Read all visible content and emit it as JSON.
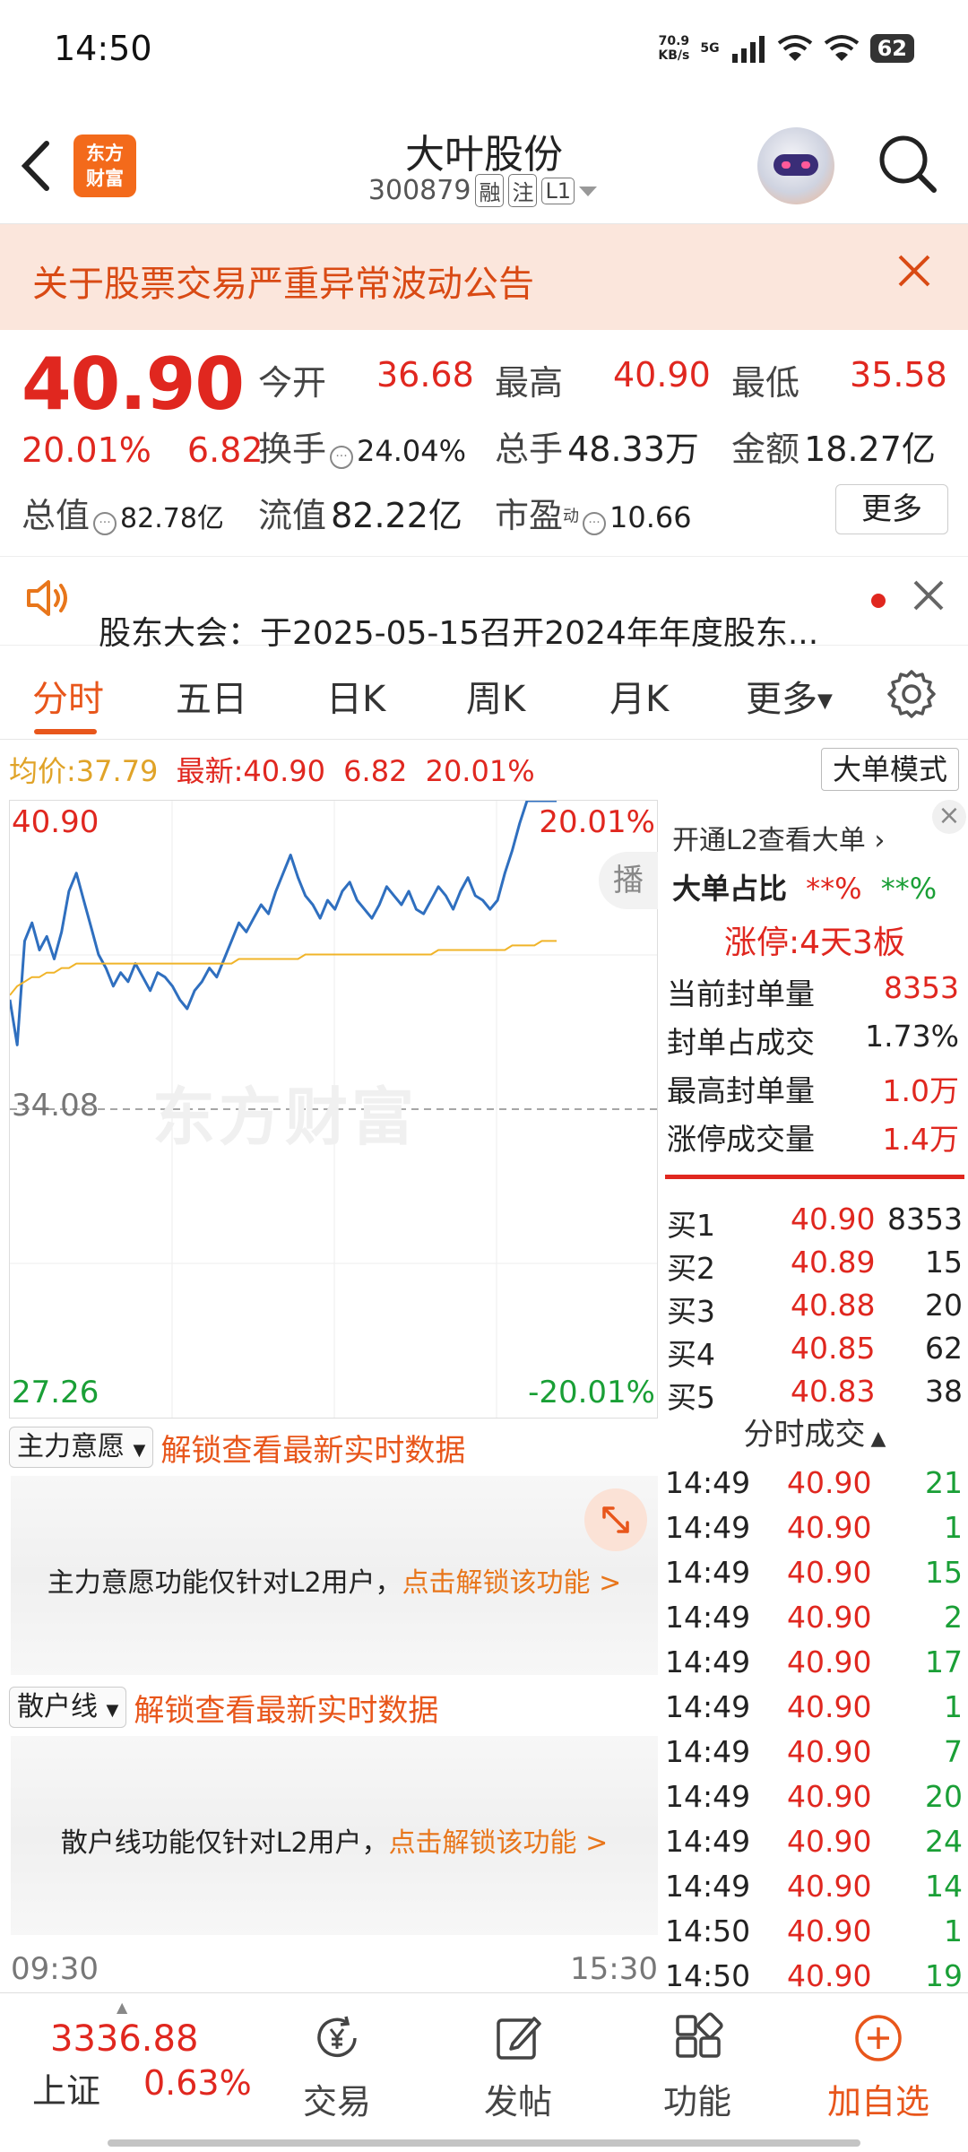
{
  "status_bar": {
    "time": "14:50",
    "net_speed_value": "70.9",
    "net_speed_unit": "KB/s",
    "network": "5G",
    "battery": "62"
  },
  "header": {
    "logo_line1": "东方",
    "logo_line2": "财富",
    "stock_name": "大叶股份",
    "stock_code": "300879",
    "tags": [
      "融",
      "注",
      "L1"
    ]
  },
  "notice": {
    "text": "关于股票交易严重异常波动公告"
  },
  "quote": {
    "price": "40.90",
    "change_pct": "20.01%",
    "change_amt": "6.82",
    "open_label": "今开",
    "open": "36.68",
    "high_label": "最高",
    "high": "40.90",
    "low_label": "最低",
    "low": "35.58",
    "turnover_label": "换手",
    "turnover": "24.04%",
    "volume_label": "总手",
    "volume": "48.33万",
    "amount_label": "金额",
    "amount": "18.27亿",
    "mktcap_label": "总值",
    "mktcap": "82.78亿",
    "float_label": "流值",
    "float_cap": "82.22亿",
    "pe_label": "市盈",
    "pe_sup": "动",
    "pe": "10.66",
    "more_label": "更多"
  },
  "announcement": {
    "text": "股东大会：于2025-05-15召开2024年年度股东..."
  },
  "tabs": {
    "intraday": "分时",
    "five_day": "五日",
    "daily": "日K",
    "weekly": "周K",
    "monthly": "月K",
    "more": "更多"
  },
  "chart_info": {
    "avg_label": "均价:",
    "avg_value": "37.79",
    "latest_label": "最新:",
    "latest_price": "40.90",
    "latest_change": "6.82",
    "latest_pct": "20.01%",
    "big_order_mode": "大单模式"
  },
  "chart_data": {
    "type": "line",
    "y_top_label": "40.90",
    "y_mid_label": "34.08",
    "y_bottom_label": "27.26",
    "pct_top_label": "20.01%",
    "pct_bottom_label": "-20.01%",
    "ylim": [
      27.26,
      40.9
    ],
    "prev_close": 34.08,
    "x_start_label": "09:30",
    "x_end_label": "15:30",
    "watermark": "东方财富",
    "broadcast_label": "播",
    "series": [
      {
        "color": "#2f6fbf",
        "values": [
          36.5,
          35.5,
          37.8,
          38.2,
          37.6,
          37.9,
          37.4,
          38.0,
          38.9,
          39.3,
          38.7,
          38.1,
          37.5,
          37.2,
          36.8,
          37.1,
          36.9,
          37.3,
          37.0,
          36.7,
          37.1,
          37.0,
          36.8,
          36.5,
          36.3,
          36.7,
          36.9,
          37.2,
          37.0,
          37.4,
          37.8,
          38.2,
          38.0,
          38.3,
          38.6,
          38.4,
          38.9,
          39.3,
          39.7,
          39.2,
          38.8,
          38.6,
          38.3,
          38.7,
          38.5,
          38.9,
          39.1,
          38.7,
          38.5,
          38.3,
          38.6,
          39.0,
          38.8,
          38.6,
          38.9,
          38.5,
          38.4,
          38.7,
          39.0,
          38.8,
          38.5,
          38.9,
          39.2,
          38.8,
          38.7,
          38.5,
          38.7,
          39.3,
          39.8,
          40.4,
          40.9,
          40.9,
          40.9,
          40.9,
          40.9
        ]
      },
      {
        "color": "#f0b429",
        "values": [
          36.6,
          36.8,
          36.9,
          37.0,
          37.0,
          37.1,
          37.1,
          37.2,
          37.2,
          37.3,
          37.3,
          37.3,
          37.3,
          37.3,
          37.3,
          37.3,
          37.3,
          37.3,
          37.3,
          37.3,
          37.3,
          37.3,
          37.3,
          37.3,
          37.3,
          37.3,
          37.3,
          37.3,
          37.3,
          37.3,
          37.3,
          37.4,
          37.4,
          37.4,
          37.4,
          37.4,
          37.4,
          37.4,
          37.4,
          37.4,
          37.5,
          37.5,
          37.5,
          37.5,
          37.5,
          37.5,
          37.5,
          37.5,
          37.5,
          37.5,
          37.5,
          37.5,
          37.5,
          37.5,
          37.5,
          37.5,
          37.5,
          37.5,
          37.6,
          37.6,
          37.6,
          37.6,
          37.6,
          37.6,
          37.6,
          37.6,
          37.6,
          37.6,
          37.7,
          37.7,
          37.7,
          37.7,
          37.8,
          37.8,
          37.8
        ]
      }
    ]
  },
  "side_panel": {
    "l2_link": "开通L2查看大单",
    "big_order_ratio_label": "大单占比",
    "big_order_ratio_red": "**%",
    "big_order_ratio_green": "**%",
    "limit_up": "涨停:4天3板",
    "stats": [
      {
        "label": "当前封单量",
        "value": "8353",
        "color": "red"
      },
      {
        "label": "封单占成交",
        "value": "1.73%",
        "color": "black"
      },
      {
        "label": "最高封单量",
        "value": "1.0万",
        "color": "red"
      },
      {
        "label": "涨停成交量",
        "value": "1.4万",
        "color": "red"
      }
    ],
    "order_book": [
      {
        "label": "买1",
        "price": "40.90",
        "vol": "8353"
      },
      {
        "label": "买2",
        "price": "40.89",
        "vol": "15"
      },
      {
        "label": "买3",
        "price": "40.88",
        "vol": "20"
      },
      {
        "label": "买4",
        "price": "40.85",
        "vol": "62"
      },
      {
        "label": "买5",
        "price": "40.83",
        "vol": "38"
      }
    ],
    "trades_header": "分时成交",
    "trades": [
      {
        "time": "14:49",
        "price": "40.90",
        "vol": "21"
      },
      {
        "time": "14:49",
        "price": "40.90",
        "vol": "1"
      },
      {
        "time": "14:49",
        "price": "40.90",
        "vol": "15"
      },
      {
        "time": "14:49",
        "price": "40.90",
        "vol": "2"
      },
      {
        "time": "14:49",
        "price": "40.90",
        "vol": "17"
      },
      {
        "time": "14:49",
        "price": "40.90",
        "vol": "1"
      },
      {
        "time": "14:49",
        "price": "40.90",
        "vol": "7"
      },
      {
        "time": "14:49",
        "price": "40.90",
        "vol": "20"
      },
      {
        "time": "14:49",
        "price": "40.90",
        "vol": "24"
      },
      {
        "time": "14:49",
        "price": "40.90",
        "vol": "14"
      },
      {
        "time": "14:50",
        "price": "40.90",
        "vol": "1"
      },
      {
        "time": "14:50",
        "price": "40.90",
        "vol": "19"
      }
    ]
  },
  "panels": {
    "main_force": {
      "select": "主力意愿",
      "link": "解锁查看最新实时数据",
      "msg": "主力意愿功能仅针对L2用户，",
      "unlock": "点击解锁该功能 >"
    },
    "retail": {
      "select": "散户线",
      "link": "解锁查看最新实时数据",
      "msg": "散户线功能仅针对L2用户，",
      "unlock": "点击解锁该功能 >"
    }
  },
  "bottom_bar": {
    "index_value": "3336.88",
    "index_name": "上证",
    "index_change": "0.63%",
    "nav": {
      "trade": "交易",
      "post": "发帖",
      "function": "功能",
      "add_watch": "加自选"
    }
  }
}
